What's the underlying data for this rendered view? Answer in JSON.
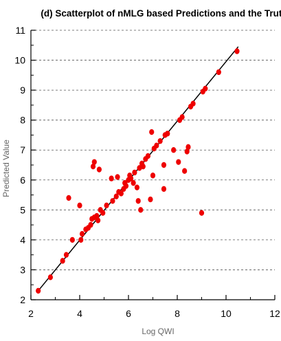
{
  "chart_data": {
    "type": "scatter",
    "title": "(d) Scatterplot of nMLG based Predictions and the Truth",
    "xlabel": "Log QWI",
    "ylabel": "Predicted Value",
    "xlim": [
      2,
      12
    ],
    "ylim": [
      2,
      11
    ],
    "x_ticks": [
      2,
      4,
      6,
      8,
      10,
      12
    ],
    "y_ticks": [
      2,
      3,
      4,
      5,
      6,
      7,
      8,
      9,
      10,
      11
    ],
    "x_tick_labels": [
      "2",
      "4",
      "6",
      "8",
      "10",
      "12"
    ],
    "y_tick_labels": [
      "2",
      "3",
      "4",
      "5",
      "6",
      "7",
      "8",
      "9",
      "10",
      "11"
    ],
    "grid": {
      "y_major": "dashed",
      "x": false
    },
    "point_color": "#ee0000",
    "line_color": "#000000",
    "fit_line": {
      "x": [
        2.3,
        10.5
      ],
      "y": [
        2.3,
        10.45
      ]
    },
    "points": [
      {
        "x": 2.3,
        "y": 2.3
      },
      {
        "x": 2.8,
        "y": 2.75
      },
      {
        "x": 3.3,
        "y": 3.3
      },
      {
        "x": 3.45,
        "y": 3.5
      },
      {
        "x": 3.55,
        "y": 5.4
      },
      {
        "x": 3.7,
        "y": 4.0
      },
      {
        "x": 4.0,
        "y": 5.15
      },
      {
        "x": 4.05,
        "y": 4.0
      },
      {
        "x": 4.1,
        "y": 4.2
      },
      {
        "x": 4.25,
        "y": 4.35
      },
      {
        "x": 4.35,
        "y": 4.4
      },
      {
        "x": 4.45,
        "y": 4.5
      },
      {
        "x": 4.5,
        "y": 4.7
      },
      {
        "x": 4.55,
        "y": 6.45
      },
      {
        "x": 4.6,
        "y": 6.6
      },
      {
        "x": 4.6,
        "y": 4.75
      },
      {
        "x": 4.7,
        "y": 4.8
      },
      {
        "x": 4.75,
        "y": 4.65
      },
      {
        "x": 4.8,
        "y": 6.35
      },
      {
        "x": 4.85,
        "y": 5.0
      },
      {
        "x": 4.95,
        "y": 4.9
      },
      {
        "x": 5.1,
        "y": 5.15
      },
      {
        "x": 5.3,
        "y": 6.05
      },
      {
        "x": 5.35,
        "y": 5.3
      },
      {
        "x": 5.5,
        "y": 5.45
      },
      {
        "x": 5.55,
        "y": 6.1
      },
      {
        "x": 5.6,
        "y": 5.6
      },
      {
        "x": 5.7,
        "y": 5.55
      },
      {
        "x": 5.8,
        "y": 5.7
      },
      {
        "x": 5.85,
        "y": 5.9
      },
      {
        "x": 5.9,
        "y": 5.8
      },
      {
        "x": 6.0,
        "y": 6.0
      },
      {
        "x": 6.05,
        "y": 6.15
      },
      {
        "x": 6.1,
        "y": 6.05
      },
      {
        "x": 6.2,
        "y": 5.9
      },
      {
        "x": 6.25,
        "y": 6.25
      },
      {
        "x": 6.35,
        "y": 5.75
      },
      {
        "x": 6.4,
        "y": 5.3
      },
      {
        "x": 6.45,
        "y": 6.4
      },
      {
        "x": 6.5,
        "y": 5.0
      },
      {
        "x": 6.55,
        "y": 6.55
      },
      {
        "x": 6.6,
        "y": 6.45
      },
      {
        "x": 6.7,
        "y": 6.7
      },
      {
        "x": 6.8,
        "y": 6.8
      },
      {
        "x": 6.9,
        "y": 5.35
      },
      {
        "x": 6.95,
        "y": 7.6
      },
      {
        "x": 7.0,
        "y": 6.15
      },
      {
        "x": 7.05,
        "y": 7.05
      },
      {
        "x": 7.15,
        "y": 7.15
      },
      {
        "x": 7.3,
        "y": 7.3
      },
      {
        "x": 7.45,
        "y": 5.7
      },
      {
        "x": 7.45,
        "y": 6.5
      },
      {
        "x": 7.5,
        "y": 7.5
      },
      {
        "x": 7.6,
        "y": 7.55
      },
      {
        "x": 7.85,
        "y": 7.0
      },
      {
        "x": 8.05,
        "y": 6.6
      },
      {
        "x": 8.1,
        "y": 8.0
      },
      {
        "x": 8.2,
        "y": 8.1
      },
      {
        "x": 8.3,
        "y": 6.3
      },
      {
        "x": 8.4,
        "y": 6.95
      },
      {
        "x": 8.45,
        "y": 7.1
      },
      {
        "x": 8.55,
        "y": 8.45
      },
      {
        "x": 8.65,
        "y": 8.55
      },
      {
        "x": 9.0,
        "y": 4.9
      },
      {
        "x": 9.05,
        "y": 8.95
      },
      {
        "x": 9.15,
        "y": 9.05
      },
      {
        "x": 9.7,
        "y": 9.6
      },
      {
        "x": 10.45,
        "y": 10.3
      }
    ]
  }
}
